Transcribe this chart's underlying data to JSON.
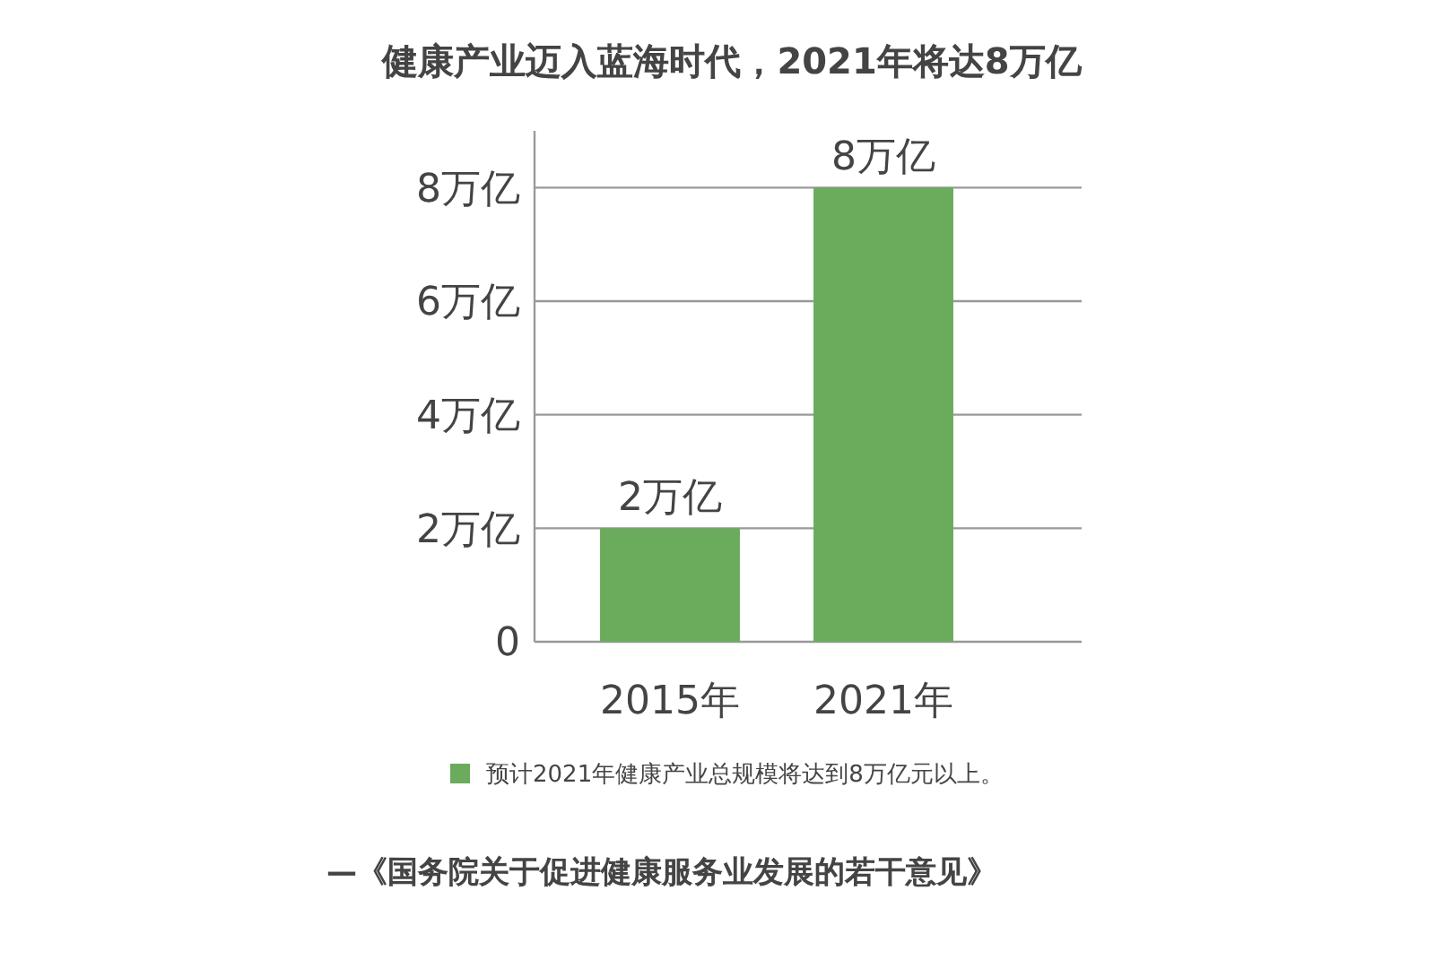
{
  "chart_data": {
    "type": "bar",
    "title": "健康产业迈入蓝海时代，2021年将达8万亿",
    "categories": [
      "2015年",
      "2021年"
    ],
    "series": [
      {
        "name": "预计2021年健康产业总规模将达到8万亿元以上。",
        "color": "#6aab5c",
        "values": [
          2,
          8
        ],
        "value_labels": [
          "2万亿",
          "8万亿"
        ]
      }
    ],
    "ylim": [
      0,
      9
    ],
    "yticks": [
      0,
      {
        "value": 2,
        "label": "2万亿"
      },
      {
        "value": 4,
        "label": "4万亿"
      },
      {
        "value": 6,
        "label": "6万亿"
      },
      {
        "value": 8,
        "label": "8万亿"
      }
    ],
    "grid": "y",
    "legend": "bottom",
    "annotations": [
      "—《国务院关于促进健康服务业发展的若干意见》"
    ]
  }
}
